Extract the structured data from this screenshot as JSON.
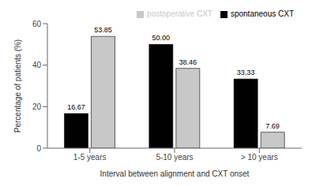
{
  "chart_data": {
    "type": "bar",
    "categories": [
      "1-5 years",
      "5-10 years",
      "> 10 years"
    ],
    "series": [
      {
        "name": "spontaneous CXT",
        "color": "#000000",
        "values": [
          16.67,
          50.0,
          33.33
        ],
        "value_labels": [
          "16.67",
          "50.00",
          "33.33"
        ]
      },
      {
        "name": "postoperative CXT",
        "color": "#c8c8c8",
        "values": [
          53.85,
          38.46,
          7.69
        ],
        "value_labels": [
          "53.85",
          "38.46",
          "7.69"
        ]
      }
    ],
    "xlabel": "Interval between alignment and CXT onset",
    "ylabel": "Percentage of patients (%)",
    "ylim": [
      0,
      60
    ],
    "yticks": [
      0,
      20,
      40,
      60
    ],
    "legend": "upper right",
    "data_labels": true,
    "grid": false
  }
}
